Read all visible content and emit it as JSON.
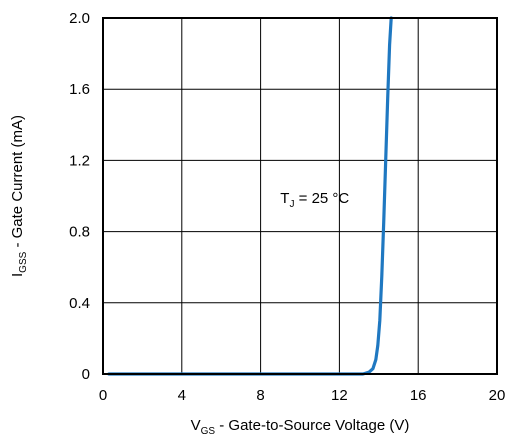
{
  "chart_data": {
    "type": "line",
    "title": "",
    "xlabel": {
      "main": "V",
      "sub": "GS",
      "rest": " - Gate-to-Source Voltage (V)"
    },
    "ylabel": {
      "main": "I",
      "sub": "GSS",
      "rest": " - Gate Current (mA)"
    },
    "xlim": [
      0,
      20
    ],
    "ylim": [
      0,
      2.0
    ],
    "x_ticks": [
      0,
      4,
      8,
      12,
      16,
      20
    ],
    "x_tick_labels": [
      "0",
      "4",
      "8",
      "12",
      "16",
      "20"
    ],
    "y_ticks": [
      0,
      0.4,
      0.8,
      1.2,
      1.6,
      2.0
    ],
    "y_tick_labels": [
      "0",
      "0.4",
      "0.8",
      "1.2",
      "1.6",
      "2.0"
    ],
    "grid": true,
    "annotation": {
      "main": "T",
      "sub": "J",
      "rest": " = 25 °C",
      "x": 9.0,
      "y": 0.96
    },
    "series": [
      {
        "color": "#1f78c1",
        "x": [
          0.3,
          12.0,
          13.2,
          13.5,
          13.7,
          13.85,
          13.95,
          14.05,
          14.15,
          14.25,
          14.35,
          14.45,
          14.55,
          14.63
        ],
        "y": [
          0.0,
          0.0,
          0.0,
          0.01,
          0.03,
          0.08,
          0.16,
          0.3,
          0.55,
          0.85,
          1.2,
          1.55,
          1.85,
          2.0
        ]
      }
    ]
  }
}
